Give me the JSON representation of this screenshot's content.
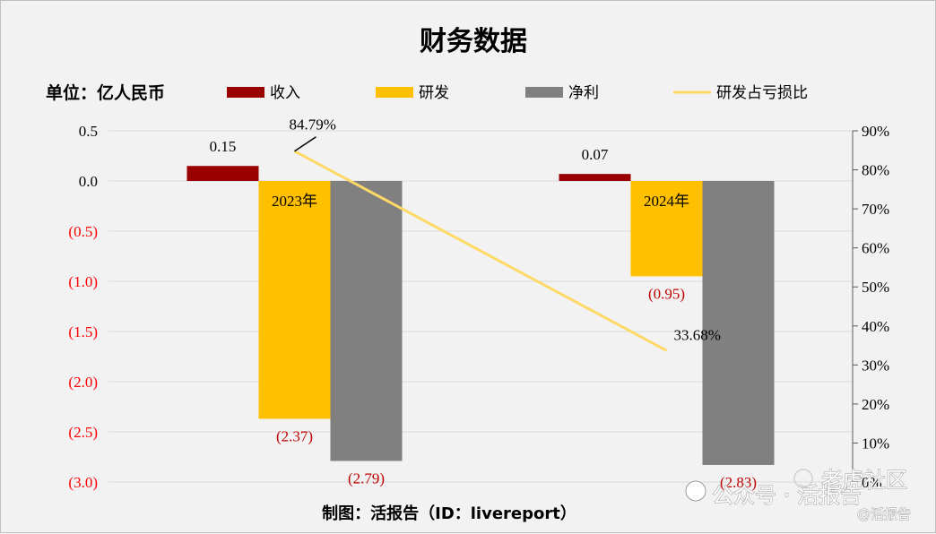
{
  "chart_data": {
    "type": "bar",
    "title": "财务数据",
    "unit_label": "单位：亿人民币",
    "categories": [
      "2023年",
      "2024年"
    ],
    "series": [
      {
        "name": "收入",
        "type": "bar",
        "color": "#9b0000",
        "values": [
          0.15,
          0.07
        ],
        "labels": [
          "0.15",
          "0.07"
        ]
      },
      {
        "name": "研发",
        "type": "bar",
        "color": "#ffc000",
        "values": [
          -2.37,
          -0.95
        ],
        "labels": [
          "(2.37)",
          "(0.95)"
        ]
      },
      {
        "name": "净利",
        "type": "bar",
        "color": "#808080",
        "values": [
          -2.79,
          -2.83
        ],
        "labels": [
          "(2.79)",
          "(2.83)"
        ]
      },
      {
        "name": "研发占亏损比",
        "type": "line",
        "axis": "right",
        "color": "#ffd966",
        "values": [
          84.79,
          33.68
        ],
        "labels": [
          "84.79%",
          "33.68%"
        ]
      }
    ],
    "left_axis": {
      "ylim": [
        -3.0,
        0.5
      ],
      "ticks": [
        0.5,
        0.0,
        -0.5,
        -1.0,
        -1.5,
        -2.0,
        -2.5,
        -3.0
      ],
      "tick_labels": [
        "0.5",
        "0.0",
        "(0.5)",
        "(1.0)",
        "(1.5)",
        "(2.0)",
        "(2.5)",
        "(3.0)"
      ],
      "negative_color": "#ff0000"
    },
    "right_axis": {
      "ylim": [
        0,
        90
      ],
      "ticks": [
        90,
        80,
        70,
        60,
        50,
        40,
        30,
        20,
        10,
        0
      ],
      "tick_labels": [
        "90%",
        "80%",
        "70%",
        "60%",
        "50%",
        "40%",
        "30%",
        "20%",
        "10%",
        "0%"
      ]
    },
    "grid": true,
    "legend_position": "top"
  },
  "footer": "制图：活报告（ID：livereport）",
  "watermark": {
    "brand": "公众号 · 活报告",
    "community": "老虎社区",
    "handle": "@活报告"
  }
}
